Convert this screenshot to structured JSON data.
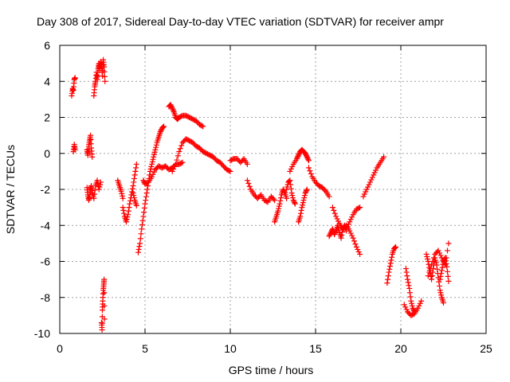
{
  "chart_data": {
    "type": "scatter",
    "title": "Day 308 of 2017, Sidereal Day-to-day VTEC variation (SDTVAR) for receiver ampr",
    "xlabel": "GPS time / hours",
    "ylabel": "SDTVAR / TECUs",
    "xlim": [
      0,
      25
    ],
    "ylim": [
      -10,
      6
    ],
    "xticks": [
      0,
      5,
      10,
      15,
      20,
      25
    ],
    "yticks": [
      -10,
      -8,
      -6,
      -4,
      -2,
      0,
      2,
      4,
      6
    ],
    "grid": true,
    "marker": "+",
    "color": "#ff0000",
    "segments": [
      {
        "name": "s1",
        "x": [
          0.7,
          0.75,
          0.8,
          0.85,
          0.9
        ],
        "y": [
          3.2,
          3.6,
          3.5,
          4.1,
          4.2
        ]
      },
      {
        "name": "s2",
        "x": [
          0.8,
          0.85,
          0.9
        ],
        "y": [
          0.1,
          0.5,
          0.2
        ]
      },
      {
        "name": "s3",
        "x": [
          1.6,
          1.65,
          1.7,
          1.75,
          1.8,
          1.85,
          1.9
        ],
        "y": [
          0.2,
          -0.1,
          0.4,
          0.7,
          1.0,
          0.3,
          -0.2
        ]
      },
      {
        "name": "s4",
        "x": [
          1.6,
          1.65,
          1.7,
          1.75,
          1.8,
          1.85,
          1.9,
          2.0,
          2.1,
          2.2,
          2.3,
          2.4
        ],
        "y": [
          -1.9,
          -2.3,
          -2.6,
          -2.4,
          -2.0,
          -1.8,
          -2.2,
          -2.5,
          -1.8,
          -1.5,
          -2.0,
          -1.6
        ]
      },
      {
        "name": "s5",
        "x": [
          2.0,
          2.05,
          2.1,
          2.15,
          2.2,
          2.25,
          2.3,
          2.35,
          2.4,
          2.45,
          2.5,
          2.55,
          2.6,
          2.65
        ],
        "y": [
          3.2,
          3.7,
          4.0,
          4.5,
          4.1,
          4.7,
          5.0,
          4.6,
          5.1,
          4.9,
          4.3,
          5.2,
          4.8,
          4.0
        ]
      },
      {
        "name": "s6",
        "x": [
          2.45,
          2.48,
          2.5,
          2.52,
          2.55,
          2.58,
          2.6,
          2.62
        ],
        "y": [
          -9.4,
          -9.8,
          -8.7,
          -8.2,
          -7.6,
          -7.3,
          -7.0,
          -9.2
        ]
      },
      {
        "name": "s7",
        "x": [
          3.4,
          3.5,
          3.6,
          3.7
        ],
        "y": [
          -1.5,
          -1.8,
          -2.1,
          -2.5
        ]
      },
      {
        "name": "s8",
        "x": [
          3.7,
          3.8,
          3.9,
          4.0,
          4.1,
          4.2,
          4.3,
          4.4,
          4.5
        ],
        "y": [
          -3.0,
          -3.5,
          -3.8,
          -3.4,
          -2.8,
          -2.3,
          -1.8,
          -1.2,
          -0.6
        ]
      },
      {
        "name": "s9",
        "x": [
          4.3,
          4.4,
          4.5
        ],
        "y": [
          -2.2,
          -2.6,
          -2.9
        ]
      },
      {
        "name": "s10",
        "x": [
          4.6,
          4.7,
          4.8,
          4.9,
          5.0,
          5.1,
          5.2,
          5.3,
          5.4,
          5.5,
          5.6,
          5.7,
          5.8,
          5.9,
          6.0,
          6.1
        ],
        "y": [
          -5.5,
          -5.0,
          -4.2,
          -3.5,
          -2.8,
          -2.2,
          -1.6,
          -1.0,
          -0.6,
          -0.2,
          0.2,
          0.6,
          0.9,
          1.2,
          1.4,
          1.5
        ]
      },
      {
        "name": "s11",
        "x": [
          4.9,
          5.0,
          5.2,
          5.4,
          5.6,
          5.8,
          6.0,
          6.2,
          6.4,
          6.6,
          6.8,
          7.0,
          7.2
        ],
        "y": [
          -1.5,
          -1.7,
          -1.6,
          -1.3,
          -0.9,
          -0.7,
          -0.8,
          -0.7,
          -0.9,
          -0.8,
          -0.6,
          -0.6,
          -0.5
        ]
      },
      {
        "name": "s12",
        "x": [
          6.4,
          6.5,
          6.6,
          6.7,
          6.8,
          6.9,
          7.0,
          7.2,
          7.4,
          7.6,
          7.8,
          8.0,
          8.2,
          8.4
        ],
        "y": [
          2.6,
          2.7,
          2.5,
          2.3,
          2.0,
          1.9,
          2.0,
          2.1,
          2.1,
          2.0,
          1.9,
          1.8,
          1.6,
          1.5
        ]
      },
      {
        "name": "s13",
        "x": [
          6.6,
          6.8,
          7.0,
          7.2,
          7.4,
          7.6,
          7.8,
          8.0,
          8.2,
          8.4,
          8.6,
          8.8,
          9.0,
          9.2,
          9.4,
          9.6,
          9.8,
          10.0
        ],
        "y": [
          -1.0,
          -0.6,
          0.1,
          0.6,
          0.8,
          0.7,
          0.6,
          0.4,
          0.3,
          0.1,
          0.0,
          -0.1,
          -0.2,
          -0.4,
          -0.5,
          -0.7,
          -0.9,
          -1.0
        ]
      },
      {
        "name": "s14",
        "x": [
          10.0,
          10.2,
          10.4,
          10.6,
          10.8,
          11.0
        ],
        "y": [
          -0.4,
          -0.3,
          -0.3,
          -0.5,
          -0.3,
          -0.6
        ]
      },
      {
        "name": "s15",
        "x": [
          11.0,
          11.2,
          11.4,
          11.6,
          11.8,
          12.0,
          12.2,
          12.4,
          12.6
        ],
        "y": [
          -1.5,
          -2.0,
          -2.3,
          -2.5,
          -2.3,
          -2.6,
          -2.7,
          -2.4,
          -2.6
        ]
      },
      {
        "name": "s16",
        "x": [
          12.6,
          12.7,
          12.8,
          12.9,
          13.0,
          13.1,
          13.2,
          13.3
        ],
        "y": [
          -3.8,
          -3.5,
          -3.2,
          -2.8,
          -2.3,
          -2.0,
          -2.2,
          -2.5
        ]
      },
      {
        "name": "s17",
        "x": [
          13.3,
          13.4,
          13.5,
          13.6,
          13.7,
          13.8
        ],
        "y": [
          -2.0,
          -1.6,
          -1.5,
          -2.2,
          -2.6,
          -2.8
        ]
      },
      {
        "name": "s18",
        "x": [
          13.5,
          13.7,
          13.9,
          14.0,
          14.1,
          14.2,
          14.3,
          14.4,
          14.5,
          14.6
        ],
        "y": [
          -1.0,
          -0.6,
          -0.3,
          -0.1,
          0.1,
          0.2,
          0.1,
          0.0,
          -0.2,
          -0.4
        ]
      },
      {
        "name": "s19",
        "x": [
          14.0,
          14.1,
          14.2,
          14.3,
          14.4,
          14.5
        ],
        "y": [
          -3.8,
          -3.5,
          -3.0,
          -2.6,
          -2.2,
          -2.0
        ]
      },
      {
        "name": "s20",
        "x": [
          14.6,
          14.8,
          15.0,
          15.2,
          15.4,
          15.6,
          15.8
        ],
        "y": [
          -0.8,
          -1.3,
          -1.6,
          -1.8,
          -1.9,
          -2.1,
          -2.4
        ]
      },
      {
        "name": "s21",
        "x": [
          15.8,
          15.9,
          16.0,
          16.1,
          16.2,
          16.3,
          16.4,
          16.5,
          16.6,
          16.7,
          16.8
        ],
        "y": [
          -4.6,
          -4.4,
          -4.2,
          -4.5,
          -4.3,
          -4.0,
          -4.4,
          -4.7,
          -4.2,
          -4.0,
          -4.3
        ]
      },
      {
        "name": "s22",
        "x": [
          16.0,
          16.2,
          16.4,
          16.6,
          16.8,
          17.0,
          17.2,
          17.4,
          17.6
        ],
        "y": [
          -3.0,
          -3.5,
          -3.9,
          -4.2,
          -4.0,
          -4.3,
          -4.7,
          -5.2,
          -5.6
        ]
      },
      {
        "name": "s23",
        "x": [
          16.8,
          17.0,
          17.2,
          17.4,
          17.6
        ],
        "y": [
          -4.2,
          -3.8,
          -3.4,
          -3.1,
          -3.0
        ]
      },
      {
        "name": "s24",
        "x": [
          17.8,
          18.0,
          18.2,
          18.4,
          18.6,
          18.8,
          19.0
        ],
        "y": [
          -2.4,
          -2.0,
          -1.6,
          -1.2,
          -0.8,
          -0.5,
          -0.2
        ]
      },
      {
        "name": "s25",
        "x": [
          19.2,
          19.3,
          19.4,
          19.5,
          19.6,
          19.7
        ],
        "y": [
          -7.2,
          -6.6,
          -6.1,
          -5.6,
          -5.3,
          -5.2
        ]
      },
      {
        "name": "s26",
        "x": [
          20.3,
          20.4,
          20.5,
          20.6,
          20.7,
          20.8
        ],
        "y": [
          -6.4,
          -7.0,
          -7.5,
          -8.2,
          -8.6,
          -8.8
        ]
      },
      {
        "name": "s27",
        "x": [
          20.2,
          20.4,
          20.6,
          20.8,
          21.0,
          21.2
        ],
        "y": [
          -8.4,
          -8.8,
          -9.0,
          -8.9,
          -8.6,
          -8.2
        ]
      },
      {
        "name": "s28",
        "x": [
          21.5,
          21.6,
          21.7,
          21.8,
          21.9,
          22.0,
          22.1,
          22.2,
          22.3,
          22.4,
          22.5
        ],
        "y": [
          -5.6,
          -6.0,
          -6.5,
          -7.0,
          -6.4,
          -5.8,
          -6.2,
          -6.9,
          -7.6,
          -8.0,
          -8.3
        ]
      },
      {
        "name": "s29",
        "x": [
          21.6,
          21.8,
          22.0,
          22.2,
          22.4,
          22.6,
          22.8
        ],
        "y": [
          -6.8,
          -6.2,
          -5.6,
          -5.4,
          -5.8,
          -6.2,
          -5.0
        ]
      },
      {
        "name": "s30",
        "x": [
          22.3,
          22.4,
          22.5,
          22.6,
          22.7,
          22.8
        ],
        "y": [
          -7.0,
          -6.5,
          -6.0,
          -5.8,
          -6.3,
          -7.1
        ]
      }
    ]
  }
}
